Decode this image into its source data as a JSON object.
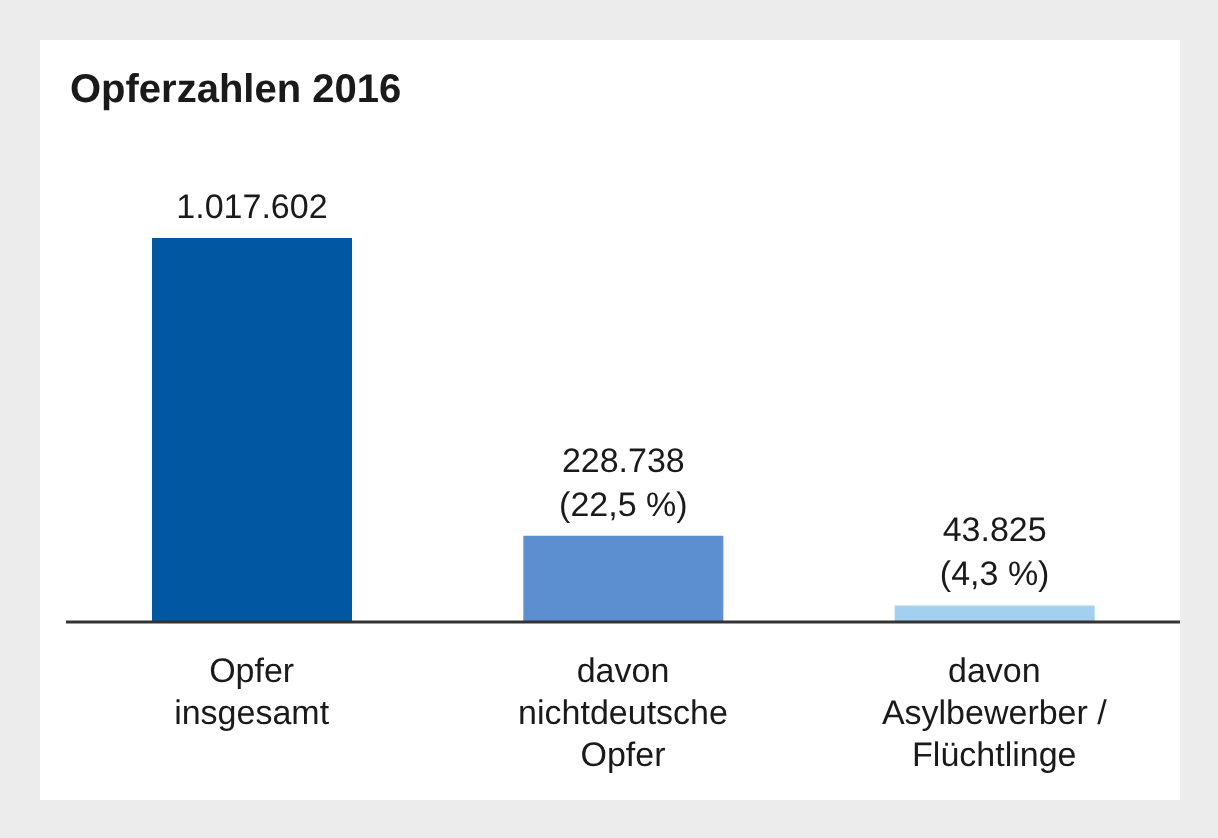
{
  "chart_data": {
    "type": "bar",
    "title": "Opferzahlen 2016",
    "categories": [
      "Opfer insgesamt",
      "davon nichtdeutsche Opfer",
      "davon Asylbewerber / Flüchtlinge"
    ],
    "values": [
      1017602,
      228738,
      43825
    ],
    "colors": [
      "#0058a3",
      "#5b8fcf",
      "#a3d0f0"
    ],
    "value_labels": [
      "1.017.602",
      "228.738\n(22,5 %)",
      "43.825\n(4,3 %)"
    ],
    "tick_labels": "x"
  }
}
